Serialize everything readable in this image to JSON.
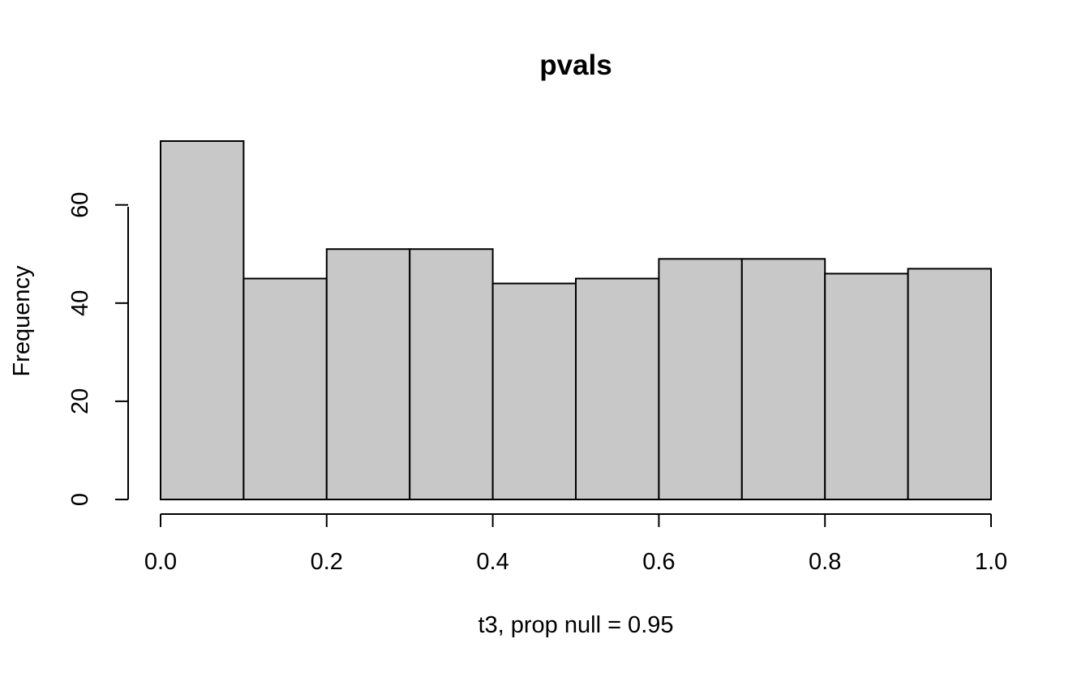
{
  "chart_data": {
    "type": "bar",
    "title": "pvals",
    "xlabel": "t3, prop null = 0.95",
    "ylabel": "Frequency",
    "bins": [
      {
        "start": 0.0,
        "end": 0.1,
        "count": 73
      },
      {
        "start": 0.1,
        "end": 0.2,
        "count": 45
      },
      {
        "start": 0.2,
        "end": 0.3,
        "count": 51
      },
      {
        "start": 0.3,
        "end": 0.4,
        "count": 51
      },
      {
        "start": 0.4,
        "end": 0.5,
        "count": 44
      },
      {
        "start": 0.5,
        "end": 0.6,
        "count": 45
      },
      {
        "start": 0.6,
        "end": 0.7,
        "count": 49
      },
      {
        "start": 0.7,
        "end": 0.8,
        "count": 49
      },
      {
        "start": 0.8,
        "end": 0.9,
        "count": 46
      },
      {
        "start": 0.9,
        "end": 1.0,
        "count": 47
      }
    ],
    "xlim": [
      0,
      1
    ],
    "ylim": [
      0,
      73
    ],
    "x_ticks": [
      0.0,
      0.2,
      0.4,
      0.6,
      0.8,
      1.0
    ],
    "x_tick_labels": [
      "0.0",
      "0.2",
      "0.4",
      "0.6",
      "0.8",
      "1.0"
    ],
    "y_ticks": [
      0,
      20,
      40,
      60
    ],
    "y_tick_labels": [
      "0",
      "20",
      "40",
      "60"
    ],
    "bar_color": "#c8c8c8",
    "border_color": "#000000",
    "grid": false,
    "legend": "none"
  }
}
